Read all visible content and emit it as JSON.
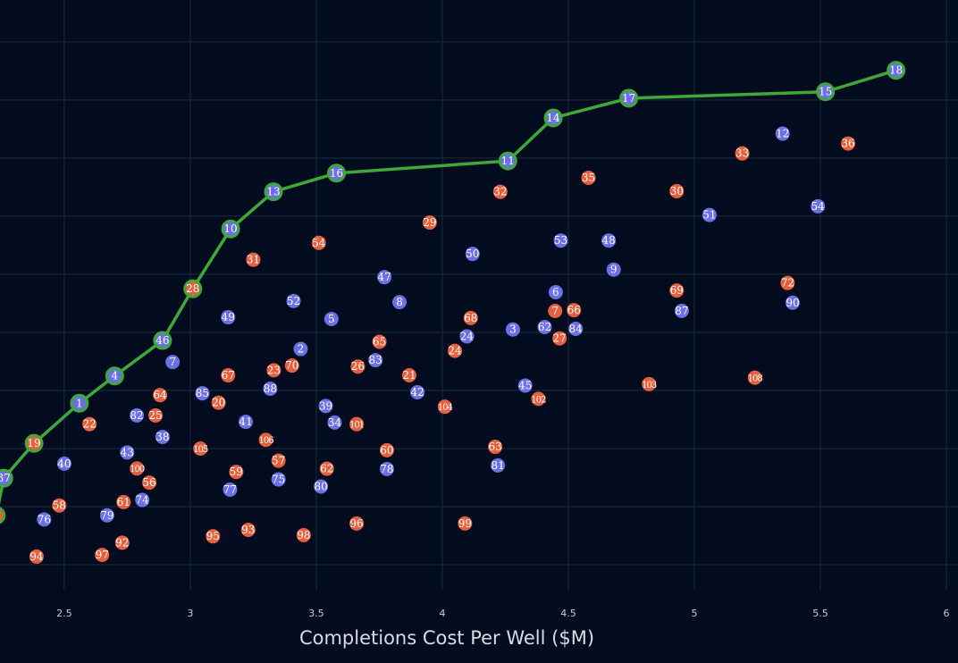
{
  "chart_data": {
    "type": "scatter",
    "title": "",
    "xlabel": "Completions Cost Per Well ($M)",
    "ylabel": "",
    "xlim": [
      2.245,
      6.046
    ],
    "ylim": [
      -0.43,
      9.72
    ],
    "x_ticks": [
      "2.5",
      "3",
      "3.5",
      "4",
      "4.5",
      "5",
      "5.5",
      "6"
    ],
    "x_tick_values": [
      2.5,
      3,
      3.5,
      4,
      4.5,
      5,
      5.5,
      6
    ],
    "y_grid_values": [
      0,
      1,
      2,
      3,
      4,
      5,
      6,
      7,
      8,
      9
    ],
    "y_tick_labels_visible": false,
    "grid": true,
    "colors": {
      "background": "#020c1e",
      "grid": "#1c2a3f",
      "blue": "#6a70e6",
      "orange": "#e4603f",
      "frontier": "#3ea83a",
      "text": "#ffffff"
    },
    "frontier": {
      "line_color": "#3ea83a",
      "points": [
        {
          "x": 2.23,
          "y": 0.85,
          "label": "",
          "group": "orange"
        },
        {
          "x": 2.26,
          "y": 1.49,
          "label": "37",
          "group": "blue"
        },
        {
          "x": 2.38,
          "y": 2.09,
          "label": "19",
          "group": "orange"
        },
        {
          "x": 2.56,
          "y": 2.78,
          "label": "1",
          "group": "blue"
        },
        {
          "x": 2.7,
          "y": 3.25,
          "label": "4",
          "group": "blue"
        },
        {
          "x": 2.89,
          "y": 3.86,
          "label": "46",
          "group": "blue"
        },
        {
          "x": 3.01,
          "y": 4.75,
          "label": "28",
          "group": "orange"
        },
        {
          "x": 3.16,
          "y": 5.78,
          "label": "10",
          "group": "blue"
        },
        {
          "x": 3.33,
          "y": 6.42,
          "label": "13",
          "group": "blue"
        },
        {
          "x": 3.58,
          "y": 6.74,
          "label": "16",
          "group": "blue"
        },
        {
          "x": 4.26,
          "y": 6.95,
          "label": "11",
          "group": "blue"
        },
        {
          "x": 4.44,
          "y": 7.69,
          "label": "14",
          "group": "blue"
        },
        {
          "x": 4.74,
          "y": 8.03,
          "label": "17",
          "group": "blue"
        },
        {
          "x": 5.52,
          "y": 8.14,
          "label": "15",
          "group": "blue"
        },
        {
          "x": 5.8,
          "y": 8.51,
          "label": "18",
          "group": "blue"
        }
      ]
    },
    "series": [
      {
        "group": "blue",
        "points": [
          {
            "x": 2.93,
            "y": 3.49,
            "label": "7"
          },
          {
            "x": 2.8,
            "y": 2.57,
            "label": "82"
          },
          {
            "x": 2.89,
            "y": 2.2,
            "label": "38"
          },
          {
            "x": 2.5,
            "y": 1.74,
            "label": "40"
          },
          {
            "x": 2.76,
            "y": 1.86,
            "label": "43"
          },
          {
            "x": 2.8,
            "y": 1.15,
            "label": "74"
          },
          {
            "x": 2.42,
            "y": 0.78,
            "label": "76"
          },
          {
            "x": 2.67,
            "y": 0.85,
            "label": "79"
          },
          {
            "x": 3.06,
            "y": 2.92,
            "label": "85"
          },
          {
            "x": 3.32,
            "y": 3.09,
            "label": "88"
          },
          {
            "x": 3.43,
            "y": 3.65,
            "label": "2"
          },
          {
            "x": 3.22,
            "y": 2.46,
            "label": "41"
          },
          {
            "x": 3.16,
            "y": 1.32,
            "label": "77"
          },
          {
            "x": 3.35,
            "y": 1.51,
            "label": "75"
          },
          {
            "x": 3.52,
            "y": 1.37,
            "label": "80"
          },
          {
            "x": 3.55,
            "y": 2.63,
            "label": "39"
          },
          {
            "x": 3.56,
            "y": 2.55,
            "label": "34"
          },
          {
            "x": 3.78,
            "y": 1.68,
            "label": "78"
          },
          {
            "x": 4.22,
            "y": 1.72,
            "label": "81"
          },
          {
            "x": 3.9,
            "y": 2.98,
            "label": "42"
          },
          {
            "x": 3.73,
            "y": 3.52,
            "label": "83"
          },
          {
            "x": 4.33,
            "y": 3.08,
            "label": "45"
          },
          {
            "x": 3.15,
            "y": 4.26,
            "label": "49"
          },
          {
            "x": 3.41,
            "y": 4.54,
            "label": "52"
          },
          {
            "x": 3.56,
            "y": 4.23,
            "label": "5"
          },
          {
            "x": 3.77,
            "y": 4.95,
            "label": "47"
          },
          {
            "x": 3.83,
            "y": 4.52,
            "label": "8"
          },
          {
            "x": 4.12,
            "y": 5.35,
            "label": "50"
          },
          {
            "x": 4.08,
            "y": 3.86,
            "label": "24"
          },
          {
            "x": 4.28,
            "y": 4.05,
            "label": "3"
          },
          {
            "x": 4.45,
            "y": 4.69,
            "label": "6"
          },
          {
            "x": 4.43,
            "y": 4.03,
            "label": "62"
          },
          {
            "x": 4.52,
            "y": 4.05,
            "label": "84"
          },
          {
            "x": 4.47,
            "y": 5.58,
            "label": "53"
          },
          {
            "x": 4.66,
            "y": 5.58,
            "label": "48"
          },
          {
            "x": 4.68,
            "y": 5.08,
            "label": "9"
          },
          {
            "x": 4.95,
            "y": 4.37,
            "label": "87"
          },
          {
            "x": 5.06,
            "y": 6.02,
            "label": "51"
          },
          {
            "x": 5.35,
            "y": 7.42,
            "label": "12"
          },
          {
            "x": 5.49,
            "y": 6.17,
            "label": "54"
          },
          {
            "x": 5.39,
            "y": 4.51,
            "label": "90"
          }
        ]
      },
      {
        "group": "orange",
        "points": [
          {
            "x": 2.6,
            "y": 2.42,
            "label": "22"
          },
          {
            "x": 2.88,
            "y": 2.92,
            "label": "64"
          },
          {
            "x": 2.85,
            "y": 2.57,
            "label": "25"
          },
          {
            "x": 2.78,
            "y": 1.72,
            "label": "100"
          },
          {
            "x": 2.83,
            "y": 1.38,
            "label": "56"
          },
          {
            "x": 2.75,
            "y": 1.09,
            "label": "61"
          },
          {
            "x": 2.48,
            "y": 1.02,
            "label": "58"
          },
          {
            "x": 2.39,
            "y": 0.14,
            "label": "94"
          },
          {
            "x": 2.65,
            "y": 0.17,
            "label": "97"
          },
          {
            "x": 2.73,
            "y": 0.38,
            "label": "92"
          },
          {
            "x": 3.15,
            "y": 3.26,
            "label": "67"
          },
          {
            "x": 3.1,
            "y": 2.82,
            "label": "20"
          },
          {
            "x": 3.33,
            "y": 3.29,
            "label": "23"
          },
          {
            "x": 3.41,
            "y": 3.49,
            "label": "70"
          },
          {
            "x": 3.04,
            "y": 2.0,
            "label": "105"
          },
          {
            "x": 3.3,
            "y": 2.15,
            "label": "106"
          },
          {
            "x": 3.18,
            "y": 1.57,
            "label": "59"
          },
          {
            "x": 3.35,
            "y": 1.75,
            "label": "57"
          },
          {
            "x": 3.09,
            "y": 0.49,
            "label": "95"
          },
          {
            "x": 3.23,
            "y": 0.6,
            "label": "93"
          },
          {
            "x": 3.45,
            "y": 0.51,
            "label": "98"
          },
          {
            "x": 3.25,
            "y": 5.25,
            "label": "31"
          },
          {
            "x": 3.51,
            "y": 5.54,
            "label": "54"
          },
          {
            "x": 3.67,
            "y": 3.42,
            "label": "26"
          },
          {
            "x": 3.75,
            "y": 3.83,
            "label": "65"
          },
          {
            "x": 3.87,
            "y": 3.25,
            "label": "21"
          },
          {
            "x": 3.66,
            "y": 2.42,
            "label": "101"
          },
          {
            "x": 3.78,
            "y": 1.94,
            "label": "60"
          },
          {
            "x": 3.54,
            "y": 1.63,
            "label": "62"
          },
          {
            "x": 3.66,
            "y": 0.71,
            "label": "96"
          },
          {
            "x": 4.09,
            "y": 0.71,
            "label": "99"
          },
          {
            "x": 4.21,
            "y": 2.02,
            "label": "63"
          },
          {
            "x": 4.01,
            "y": 2.72,
            "label": "104"
          },
          {
            "x": 4.38,
            "y": 2.86,
            "label": "102"
          },
          {
            "x": 3.95,
            "y": 5.89,
            "label": "29"
          },
          {
            "x": 4.11,
            "y": 4.2,
            "label": "68"
          },
          {
            "x": 4.07,
            "y": 3.8,
            "label": "24"
          },
          {
            "x": 4.23,
            "y": 6.42,
            "label": "32"
          },
          {
            "x": 4.58,
            "y": 6.66,
            "label": "35"
          },
          {
            "x": 4.47,
            "y": 4.37,
            "label": "7"
          },
          {
            "x": 4.5,
            "y": 4.37,
            "label": "66"
          },
          {
            "x": 4.45,
            "y": 3.98,
            "label": "27"
          },
          {
            "x": 4.93,
            "y": 4.72,
            "label": "69"
          },
          {
            "x": 4.93,
            "y": 6.43,
            "label": "30"
          },
          {
            "x": 4.82,
            "y": 3.11,
            "label": "103"
          },
          {
            "x": 5.24,
            "y": 3.22,
            "label": "108"
          },
          {
            "x": 5.37,
            "y": 4.85,
            "label": "72"
          },
          {
            "x": 5.19,
            "y": 7.08,
            "label": "33"
          },
          {
            "x": 5.61,
            "y": 7.25,
            "label": "36"
          }
        ]
      }
    ]
  }
}
